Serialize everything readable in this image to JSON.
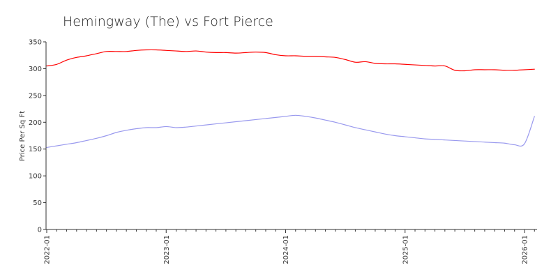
{
  "chart_data": {
    "type": "line",
    "title": "Hemingway (The) vs Fort Pierce",
    "xlabel": "",
    "ylabel": "Price Per Sq Ft",
    "ylim": [
      0,
      350
    ],
    "yticks": [
      0,
      50,
      100,
      150,
      200,
      250,
      300,
      350
    ],
    "x_range": [
      "2022-01",
      "2026-01"
    ],
    "xticks": [
      "2022-01",
      "2023-01",
      "2024-01",
      "2025-01",
      "2026-01"
    ],
    "grid": false,
    "series": [
      {
        "color": "#ff0000",
        "points": [
          [
            "2022-01",
            305
          ],
          [
            "2022-02",
            308
          ],
          [
            "2022-03",
            316
          ],
          [
            "2022-04",
            321
          ],
          [
            "2022-05",
            324
          ],
          [
            "2022-06",
            328
          ],
          [
            "2022-07",
            332
          ],
          [
            "2022-08",
            332
          ],
          [
            "2022-09",
            332
          ],
          [
            "2022-10",
            334
          ],
          [
            "2022-11",
            335
          ],
          [
            "2022-12",
            335
          ],
          [
            "2023-01",
            334
          ],
          [
            "2023-02",
            333
          ],
          [
            "2023-03",
            332
          ],
          [
            "2023-04",
            333
          ],
          [
            "2023-05",
            331
          ],
          [
            "2023-06",
            330
          ],
          [
            "2023-07",
            330
          ],
          [
            "2023-08",
            329
          ],
          [
            "2023-09",
            330
          ],
          [
            "2023-10",
            331
          ],
          [
            "2023-11",
            330
          ],
          [
            "2023-12",
            326
          ],
          [
            "2024-01",
            324
          ],
          [
            "2024-02",
            324
          ],
          [
            "2024-03",
            323
          ],
          [
            "2024-04",
            323
          ],
          [
            "2024-05",
            322
          ],
          [
            "2024-06",
            321
          ],
          [
            "2024-07",
            317
          ],
          [
            "2024-08",
            312
          ],
          [
            "2024-09",
            313
          ],
          [
            "2024-10",
            310
          ],
          [
            "2024-11",
            309
          ],
          [
            "2024-12",
            309
          ],
          [
            "2025-01",
            308
          ],
          [
            "2025-02",
            307
          ],
          [
            "2025-03",
            306
          ],
          [
            "2025-04",
            305
          ],
          [
            "2025-05",
            305
          ],
          [
            "2025-06",
            297
          ],
          [
            "2025-07",
            296
          ],
          [
            "2025-08",
            298
          ],
          [
            "2025-09",
            298
          ],
          [
            "2025-10",
            298
          ],
          [
            "2025-11",
            297
          ],
          [
            "2025-12",
            297
          ],
          [
            "2026-01",
            298
          ],
          [
            "2026-02",
            299
          ]
        ]
      },
      {
        "color": "#9999ee",
        "points": [
          [
            "2022-01",
            153
          ],
          [
            "2022-02",
            156
          ],
          [
            "2022-03",
            159
          ],
          [
            "2022-04",
            162
          ],
          [
            "2022-05",
            166
          ],
          [
            "2022-06",
            170
          ],
          [
            "2022-07",
            175
          ],
          [
            "2022-08",
            181
          ],
          [
            "2022-09",
            185
          ],
          [
            "2022-10",
            188
          ],
          [
            "2022-11",
            190
          ],
          [
            "2022-12",
            190
          ],
          [
            "2023-01",
            192
          ],
          [
            "2023-02",
            190
          ],
          [
            "2023-03",
            191
          ],
          [
            "2023-04",
            193
          ],
          [
            "2023-05",
            195
          ],
          [
            "2023-06",
            197
          ],
          [
            "2023-07",
            199
          ],
          [
            "2023-08",
            201
          ],
          [
            "2023-09",
            203
          ],
          [
            "2023-10",
            205
          ],
          [
            "2023-11",
            207
          ],
          [
            "2023-12",
            209
          ],
          [
            "2024-01",
            211
          ],
          [
            "2024-02",
            213
          ],
          [
            "2024-03",
            211
          ],
          [
            "2024-04",
            208
          ],
          [
            "2024-05",
            204
          ],
          [
            "2024-06",
            200
          ],
          [
            "2024-07",
            195
          ],
          [
            "2024-08",
            190
          ],
          [
            "2024-09",
            186
          ],
          [
            "2024-10",
            182
          ],
          [
            "2024-11",
            178
          ],
          [
            "2024-12",
            175
          ],
          [
            "2025-01",
            173
          ],
          [
            "2025-02",
            171
          ],
          [
            "2025-03",
            169
          ],
          [
            "2025-04",
            168
          ],
          [
            "2025-05",
            167
          ],
          [
            "2025-06",
            166
          ],
          [
            "2025-07",
            165
          ],
          [
            "2025-08",
            164
          ],
          [
            "2025-09",
            163
          ],
          [
            "2025-10",
            162
          ],
          [
            "2025-11",
            161
          ],
          [
            "2025-12",
            158
          ],
          [
            "2026-01",
            160
          ],
          [
            "2026-02",
            211
          ]
        ]
      }
    ]
  }
}
